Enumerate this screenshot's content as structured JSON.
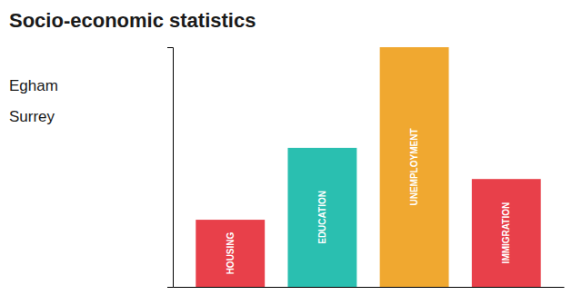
{
  "chart_data": {
    "type": "bar",
    "title": "Socio-economic statistics",
    "subtitle": [
      "Egham",
      "Surrey"
    ],
    "categories": [
      "HOUSING",
      "EDUCATION",
      "UNEMPLOYMENT",
      "IMMIGRATION"
    ],
    "values": [
      0.28,
      0.58,
      1.0,
      0.45
    ],
    "colors": [
      "#e8404a",
      "#2abfb0",
      "#f0a830",
      "#e8404a"
    ],
    "ylim": [
      0,
      1
    ],
    "grid": false,
    "tick_labels": false
  }
}
